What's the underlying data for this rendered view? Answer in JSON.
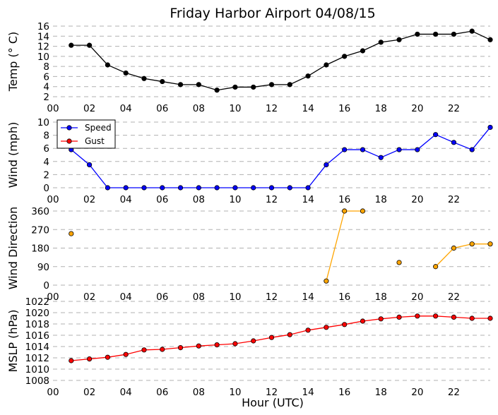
{
  "title": "Friday Harbor Airport 04/08/15",
  "xlabel": "Hour (UTC)",
  "xticks": [
    "00",
    "02",
    "04",
    "06",
    "08",
    "10",
    "12",
    "14",
    "16",
    "18",
    "20",
    "22"
  ],
  "chart_data": [
    {
      "id": "temp",
      "type": "line",
      "ylabel": "Temp ($^\\circ$C)",
      "ylabel_display": "Temp (° C)",
      "ylim": [
        2,
        16
      ],
      "yticks": [
        2,
        4,
        6,
        8,
        10,
        12,
        14,
        16
      ],
      "grid": true,
      "series": [
        {
          "color": "#000000",
          "x": [
            1,
            2,
            3,
            4,
            5,
            6,
            7,
            8,
            9,
            10,
            11,
            12,
            13,
            14,
            15,
            16,
            17,
            18,
            19,
            20,
            21,
            22,
            23,
            24
          ],
          "values": [
            12.2,
            12.2,
            8.3,
            6.7,
            5.6,
            5.0,
            4.4,
            4.4,
            3.3,
            3.9,
            3.9,
            4.4,
            4.4,
            6.1,
            8.3,
            10.0,
            11.1,
            12.8,
            13.3,
            14.4,
            14.4,
            14.4,
            15.0,
            13.3
          ]
        }
      ]
    },
    {
      "id": "wind",
      "type": "line",
      "ylabel": "Wind (mph)",
      "ylim": [
        0,
        10
      ],
      "yticks": [
        0,
        2,
        4,
        6,
        8,
        10
      ],
      "grid": true,
      "legend": "top-left",
      "series": [
        {
          "name": "Speed",
          "color": "#0000ff",
          "x": [
            1,
            2,
            3,
            4,
            5,
            6,
            7,
            8,
            9,
            10,
            11,
            12,
            13,
            14,
            15,
            16,
            17,
            18,
            19,
            20,
            21,
            22,
            23,
            24
          ],
          "values": [
            5.8,
            3.5,
            0,
            0,
            0,
            0,
            0,
            0,
            0,
            0,
            0,
            0,
            0,
            0,
            3.5,
            5.8,
            5.8,
            4.6,
            5.8,
            5.8,
            8.1,
            6.9,
            5.8,
            9.2
          ]
        },
        {
          "name": "Gust",
          "color": "#ff0000",
          "x": [],
          "values": []
        }
      ]
    },
    {
      "id": "dir",
      "type": "line",
      "ylabel": "Wind Direction",
      "ylim": [
        0,
        360
      ],
      "yticks": [
        0,
        90,
        180,
        270,
        360
      ],
      "grid": true,
      "series": [
        {
          "color": "#ffa500",
          "x": [
            1,
            15,
            16,
            17,
            19,
            21,
            22,
            23,
            24
          ],
          "values": [
            250,
            20,
            360,
            360,
            110,
            90,
            180,
            200,
            200
          ],
          "segments": [
            [
              1
            ],
            [
              15,
              16,
              17
            ],
            [
              19
            ],
            [
              21,
              22,
              23,
              24
            ]
          ]
        }
      ]
    },
    {
      "id": "mslp",
      "type": "line",
      "ylabel": "MSLP (hPa)",
      "ylim": [
        1008,
        1022
      ],
      "yticks": [
        1008,
        1010,
        1012,
        1014,
        1016,
        1018,
        1020,
        1022
      ],
      "grid": true,
      "series": [
        {
          "color": "#ff0000",
          "x": [
            1,
            2,
            3,
            4,
            5,
            6,
            7,
            8,
            9,
            10,
            11,
            12,
            13,
            14,
            15,
            16,
            17,
            18,
            19,
            20,
            21,
            22,
            23,
            24
          ],
          "values": [
            1011.5,
            1011.8,
            1012.1,
            1012.6,
            1013.4,
            1013.5,
            1013.8,
            1014.1,
            1014.3,
            1014.5,
            1015.0,
            1015.6,
            1016.1,
            1016.9,
            1017.4,
            1017.9,
            1018.5,
            1018.9,
            1019.2,
            1019.4,
            1019.4,
            1019.2,
            1019.0,
            1019.0
          ]
        }
      ]
    }
  ]
}
